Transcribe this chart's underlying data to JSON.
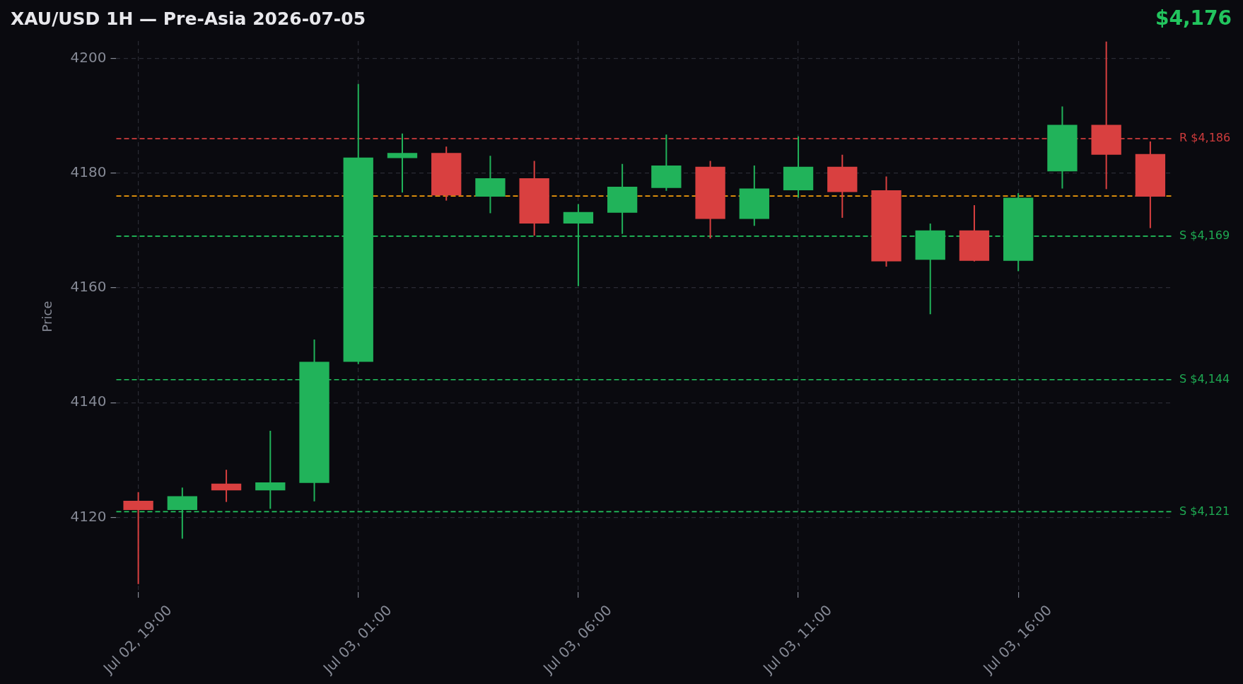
{
  "chart_data": {
    "type": "candlestick",
    "title": "XAU/USD 1H — Pre-Asia 2026-07-05",
    "ylabel": "Price",
    "categories": [
      "Jul 02, 19:00",
      null,
      null,
      null,
      null,
      "Jul 03, 01:00",
      null,
      null,
      null,
      null,
      "Jul 03, 06:00",
      null,
      null,
      null,
      null,
      "Jul 03, 11:00",
      null,
      null,
      null,
      null,
      "Jul 03, 16:00",
      null,
      null,
      null
    ],
    "ohlc": [
      [
        4122.9,
        4124.4,
        4108.4,
        4121.3
      ],
      [
        4121.3,
        4125.2,
        4116.3,
        4123.7
      ],
      [
        4125.9,
        4128.3,
        4122.7,
        4124.7
      ],
      [
        4124.7,
        4135.1,
        4121.5,
        4126.1
      ],
      [
        4126.0,
        4151.0,
        4122.8,
        4147.1
      ],
      [
        4147.1,
        4195.5,
        4146.7,
        4182.7
      ],
      [
        4182.6,
        4186.9,
        4176.6,
        4183.5
      ],
      [
        4183.5,
        4184.6,
        4175.2,
        4176.1
      ],
      [
        4175.9,
        4183.0,
        4173.0,
        4179.1
      ],
      [
        4179.1,
        4182.1,
        4169.1,
        4171.2
      ],
      [
        4171.2,
        4174.6,
        4160.3,
        4173.2
      ],
      [
        4173.1,
        4181.6,
        4169.4,
        4177.6
      ],
      [
        4177.4,
        4186.7,
        4176.9,
        4181.3
      ],
      [
        4181.1,
        4182.1,
        4168.6,
        4172.0
      ],
      [
        4172.0,
        4181.3,
        4170.8,
        4177.3
      ],
      [
        4177.0,
        4186.4,
        4175.7,
        4181.1
      ],
      [
        4181.1,
        4183.2,
        4172.2,
        4176.7
      ],
      [
        4177.0,
        4179.4,
        4163.7,
        4164.6
      ],
      [
        4164.9,
        4171.2,
        4155.4,
        4170.0
      ],
      [
        4170.0,
        4174.4,
        4164.6,
        4164.7
      ],
      [
        4164.7,
        4176.5,
        4162.9,
        4175.7
      ],
      [
        4180.3,
        4191.6,
        4177.3,
        4188.4
      ],
      [
        4188.4,
        4202.9,
        4177.2,
        4183.2
      ],
      [
        4183.3,
        4185.5,
        4170.4,
        4175.9
      ]
    ],
    "colors": [
      "#d94040",
      "#21b35a",
      "#d94040",
      "#21b35a",
      "#21b35a",
      "#21b35a",
      "#21b35a",
      "#d94040",
      "#21b35a",
      "#d94040",
      "#21b35a",
      "#21b35a",
      "#21b35a",
      "#d94040",
      "#21b35a",
      "#21b35a",
      "#d94040",
      "#d94040",
      "#21b35a",
      "#d94040",
      "#21b35a",
      "#21b35a",
      "#d94040",
      "#d94040"
    ],
    "ylim": [
      4107,
      4203
    ],
    "yticks": [
      4120,
      4140,
      4160,
      4180,
      4200
    ],
    "grid": true,
    "ref_lines": [
      {
        "axis": "y",
        "value": 4186,
        "label": "R $4,186",
        "color": "#ef4444",
        "line_style": "dashed"
      },
      {
        "axis": "y",
        "value": 4176,
        "color": "#f59e0b",
        "line_style": "dashed"
      },
      {
        "axis": "y",
        "value": 4169,
        "label": "S $4,169",
        "color": "#22c55e",
        "line_style": "dashed"
      },
      {
        "axis": "y",
        "value": 4144,
        "label": "S $4,144",
        "color": "#22c55e",
        "line_style": "dashed"
      },
      {
        "axis": "y",
        "value": 4121,
        "label": "S $4,121",
        "color": "#22c55e",
        "line_style": "dashed"
      }
    ],
    "annotations": [
      "$4,176"
    ]
  }
}
